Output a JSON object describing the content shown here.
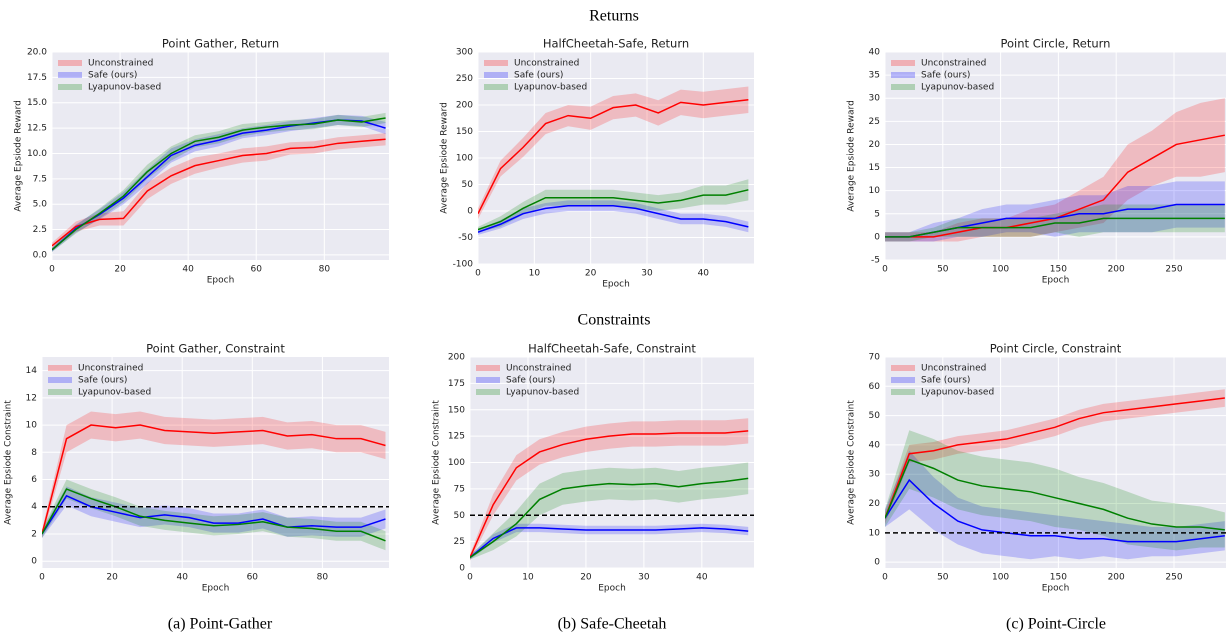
{
  "headings": [
    "Returns",
    "Constraints"
  ],
  "captions": [
    "(a) Point-Gather",
    "(b) Safe-Cheetah",
    "(c) Point-Circle"
  ],
  "chart_data": [
    {
      "type": "line",
      "title": "Point Gather, Return",
      "xlabel": "Epoch",
      "ylabel": "Average Epsiode Reward",
      "x": [
        0,
        7,
        14,
        21,
        28,
        35,
        42,
        49,
        56,
        63,
        70,
        77,
        84,
        91,
        98
      ],
      "xlim": [
        0,
        99
      ],
      "xticks": [
        0,
        20,
        40,
        60,
        80
      ],
      "ylim": [
        -0.5,
        20
      ],
      "yticks": [
        {
          "value": 0,
          "label": "0.0"
        },
        2.5,
        {
          "value": 5,
          "label": "5.0"
        },
        7.5,
        {
          "value": 10,
          "label": "10.0"
        },
        12.5,
        {
          "value": 15,
          "label": "15.0"
        },
        17.5,
        {
          "value": 20,
          "label": "20.0"
        }
      ],
      "grid": true,
      "legend": "upper left",
      "series": [
        {
          "name": "Unconstrained",
          "color": "#ff0000",
          "values": [
            0.9,
            2.8,
            3.5,
            3.6,
            6.3,
            7.8,
            8.8,
            9.3,
            9.8,
            10.0,
            10.5,
            10.6,
            11.0,
            11.2,
            11.4
          ],
          "spread": [
            0.3,
            0.5,
            0.6,
            0.7,
            0.8,
            0.8,
            0.8,
            0.7,
            0.7,
            0.7,
            0.6,
            0.6,
            0.6,
            0.6,
            0.6
          ]
        },
        {
          "name": "Safe (ours)",
          "color": "#0000ff",
          "values": [
            0.5,
            2.6,
            4.0,
            5.6,
            7.7,
            9.8,
            10.8,
            11.3,
            12.0,
            12.3,
            12.7,
            13.0,
            13.3,
            13.2,
            12.5
          ],
          "spread": [
            0.2,
            0.4,
            0.5,
            0.6,
            0.7,
            0.7,
            0.6,
            0.6,
            0.5,
            0.5,
            0.5,
            0.5,
            0.5,
            0.5,
            0.6
          ]
        },
        {
          "name": "Lyapunov-based",
          "color": "#008000",
          "values": [
            0.5,
            2.5,
            4.1,
            5.8,
            8.2,
            10.0,
            11.2,
            11.6,
            12.3,
            12.6,
            12.8,
            12.9,
            13.3,
            13.1,
            13.5
          ],
          "spread": [
            0.2,
            0.4,
            0.5,
            0.6,
            0.7,
            0.7,
            0.6,
            0.6,
            0.6,
            0.5,
            0.5,
            0.5,
            0.5,
            0.5,
            0.5
          ]
        }
      ]
    },
    {
      "type": "line",
      "title": "HalfCheetah-Safe, Return",
      "xlabel": "Epoch",
      "ylabel": "Average Epsiode Reward",
      "x": [
        0,
        4,
        8,
        12,
        16,
        20,
        24,
        28,
        32,
        36,
        40,
        44,
        48
      ],
      "xlim": [
        0,
        49
      ],
      "xticks": [
        0,
        10,
        20,
        30,
        40
      ],
      "ylim": [
        -100,
        300
      ],
      "yticks": [
        -100,
        -50,
        0,
        50,
        100,
        150,
        200,
        250,
        300
      ],
      "grid": true,
      "legend": "upper left",
      "series": [
        {
          "name": "Unconstrained",
          "color": "#ff0000",
          "values": [
            -5,
            80,
            120,
            165,
            180,
            175,
            195,
            200,
            185,
            205,
            200,
            205,
            210
          ],
          "spread": [
            10,
            15,
            18,
            20,
            20,
            22,
            22,
            22,
            24,
            24,
            25,
            25,
            25
          ]
        },
        {
          "name": "Safe (ours)",
          "color": "#0000ff",
          "values": [
            -40,
            -25,
            -5,
            5,
            10,
            10,
            10,
            5,
            -5,
            -15,
            -15,
            -20,
            -30
          ],
          "spread": [
            5,
            8,
            10,
            10,
            10,
            10,
            10,
            10,
            10,
            10,
            10,
            10,
            10
          ]
        },
        {
          "name": "Lyapunov-based",
          "color": "#008000",
          "values": [
            -35,
            -20,
            5,
            25,
            25,
            25,
            25,
            20,
            15,
            20,
            30,
            30,
            40
          ],
          "spread": [
            5,
            10,
            12,
            15,
            15,
            15,
            15,
            15,
            15,
            15,
            18,
            18,
            20
          ]
        }
      ]
    },
    {
      "type": "line",
      "title": "Point Circle, Return",
      "xlabel": "Epoch",
      "ylabel": "Average Epsiode Reward",
      "x": [
        0,
        21,
        42,
        63,
        84,
        105,
        126,
        147,
        168,
        189,
        210,
        231,
        252,
        273,
        294
      ],
      "xlim": [
        0,
        295
      ],
      "xticks": [
        0,
        50,
        100,
        150,
        200,
        250
      ],
      "ylim": [
        -5,
        40
      ],
      "yticks": [
        -5,
        0,
        5,
        10,
        15,
        20,
        25,
        30,
        35,
        40
      ],
      "grid": true,
      "legend": "upper left",
      "series": [
        {
          "name": "Unconstrained",
          "color": "#ff0000",
          "values": [
            0,
            0,
            0,
            1,
            2,
            2,
            3,
            4,
            6,
            8,
            14,
            17,
            20,
            21,
            22
          ],
          "spread": [
            1,
            1,
            1,
            2,
            2,
            2,
            3,
            3,
            4,
            5,
            6,
            6,
            7,
            8,
            8
          ]
        },
        {
          "name": "Safe (ours)",
          "color": "#0000ff",
          "values": [
            0,
            0,
            1,
            2,
            3,
            4,
            4,
            4,
            5,
            5,
            6,
            6,
            7,
            7,
            7
          ],
          "spread": [
            1,
            1,
            2,
            2,
            3,
            3,
            3,
            4,
            4,
            4,
            5,
            5,
            5,
            5,
            5
          ]
        },
        {
          "name": "Lyapunov-based",
          "color": "#008000",
          "values": [
            0,
            0,
            1,
            2,
            2,
            2,
            2,
            3,
            3,
            4,
            4,
            4,
            4,
            4,
            4
          ],
          "spread": [
            1,
            1,
            1,
            2,
            2,
            2,
            2,
            2,
            3,
            3,
            3,
            3,
            3,
            3,
            3
          ]
        }
      ]
    },
    {
      "type": "line",
      "title": "Point Gather, Constraint",
      "xlabel": "Epoch",
      "ylabel": "Average Epsiode Constraint",
      "x": [
        0,
        7,
        14,
        21,
        28,
        35,
        42,
        49,
        56,
        63,
        70,
        77,
        84,
        91,
        98
      ],
      "xlim": [
        0,
        99
      ],
      "xticks": [
        0,
        20,
        40,
        60,
        80
      ],
      "ylim": [
        -0.5,
        15
      ],
      "yticks": [
        0,
        2,
        4,
        6,
        8,
        10,
        12,
        14
      ],
      "grid": true,
      "legend": "upper left",
      "threshold": 4,
      "series": [
        {
          "name": "Unconstrained",
          "color": "#ff0000",
          "values": [
            2,
            9,
            10,
            9.8,
            10,
            9.6,
            9.5,
            9.4,
            9.5,
            9.6,
            9.2,
            9.3,
            9.0,
            9.0,
            8.5
          ],
          "spread": [
            0.3,
            1,
            1,
            1,
            1,
            1,
            1,
            1,
            1,
            1,
            1,
            1,
            1,
            1,
            1
          ]
        },
        {
          "name": "Safe (ours)",
          "color": "#0000ff",
          "values": [
            2,
            4.8,
            4.0,
            3.6,
            3.2,
            3.4,
            3.2,
            2.8,
            2.8,
            3.1,
            2.5,
            2.6,
            2.5,
            2.5,
            3.1
          ],
          "spread": [
            0.3,
            0.7,
            0.7,
            0.7,
            0.7,
            0.7,
            0.7,
            0.7,
            0.7,
            0.7,
            0.7,
            0.7,
            0.7,
            0.7,
            0.7
          ]
        },
        {
          "name": "Lyapunov-based",
          "color": "#008000",
          "values": [
            2,
            5.3,
            4.6,
            4.0,
            3.3,
            3.0,
            2.8,
            2.6,
            2.7,
            2.9,
            2.5,
            2.4,
            2.2,
            2.2,
            1.5
          ],
          "spread": [
            0.3,
            0.7,
            0.7,
            0.7,
            0.7,
            0.7,
            0.7,
            0.7,
            0.7,
            0.7,
            0.7,
            0.7,
            0.7,
            0.7,
            0.7
          ]
        }
      ]
    },
    {
      "type": "line",
      "title": "HalfCheetah-Safe, Constraint",
      "xlabel": "Epoch",
      "ylabel": "Average Epsiode Constraint",
      "x": [
        0,
        4,
        8,
        12,
        16,
        20,
        24,
        28,
        32,
        36,
        40,
        44,
        48
      ],
      "xlim": [
        0,
        49
      ],
      "xticks": [
        0,
        10,
        20,
        30,
        40
      ],
      "ylim": [
        0,
        200
      ],
      "yticks": [
        0,
        25,
        50,
        75,
        100,
        125,
        150,
        175,
        200
      ],
      "grid": true,
      "legend": "upper left",
      "threshold": 50,
      "series": [
        {
          "name": "Unconstrained",
          "color": "#ff0000",
          "values": [
            10,
            60,
            95,
            110,
            117,
            122,
            125,
            127,
            127,
            128,
            128,
            128,
            130
          ],
          "spread": [
            3,
            10,
            12,
            12,
            12,
            12,
            12,
            12,
            12,
            12,
            12,
            12,
            12
          ]
        },
        {
          "name": "Safe (ours)",
          "color": "#0000ff",
          "values": [
            10,
            28,
            38,
            38,
            37,
            36,
            36,
            36,
            36,
            37,
            38,
            37,
            35
          ],
          "spread": [
            2,
            4,
            4,
            4,
            4,
            4,
            4,
            4,
            4,
            4,
            4,
            4,
            4
          ]
        },
        {
          "name": "Lyapunov-based",
          "color": "#008000",
          "values": [
            10,
            25,
            42,
            65,
            75,
            78,
            80,
            79,
            80,
            77,
            80,
            82,
            85
          ],
          "spread": [
            2,
            8,
            12,
            15,
            15,
            15,
            15,
            15,
            15,
            15,
            15,
            15,
            15
          ]
        }
      ]
    },
    {
      "type": "line",
      "title": "Point Circle, Constraint",
      "xlabel": "Epoch",
      "ylabel": "Average Epsiode Constraint",
      "x": [
        0,
        21,
        42,
        63,
        84,
        105,
        126,
        147,
        168,
        189,
        210,
        231,
        252,
        273,
        294
      ],
      "xlim": [
        0,
        295
      ],
      "xticks": [
        0,
        50,
        100,
        150,
        200,
        250
      ],
      "ylim": [
        -2,
        70
      ],
      "yticks": [
        0,
        10,
        20,
        30,
        40,
        50,
        60,
        70
      ],
      "grid": true,
      "legend": "upper left",
      "threshold": 10,
      "series": [
        {
          "name": "Unconstrained",
          "color": "#ff0000",
          "values": [
            15,
            37,
            38,
            40,
            41,
            42,
            44,
            46,
            49,
            51,
            52,
            53,
            54,
            55,
            56
          ],
          "spread": [
            2,
            3,
            3,
            3,
            3,
            3,
            3,
            3,
            3,
            3,
            3,
            3,
            3,
            3,
            3
          ]
        },
        {
          "name": "Safe (ours)",
          "color": "#0000ff",
          "values": [
            15,
            28,
            20,
            14,
            11,
            10,
            9,
            9,
            8,
            8,
            7,
            7,
            7,
            8,
            9
          ],
          "spread": [
            3,
            10,
            9,
            8,
            8,
            8,
            8,
            7,
            7,
            6,
            6,
            5,
            5,
            5,
            5
          ]
        },
        {
          "name": "Lyapunov-based",
          "color": "#008000",
          "values": [
            15,
            35,
            32,
            28,
            26,
            25,
            24,
            22,
            20,
            18,
            15,
            13,
            12,
            12,
            11
          ],
          "spread": [
            3,
            10,
            10,
            10,
            10,
            10,
            10,
            10,
            9,
            9,
            9,
            8,
            8,
            7,
            6
          ]
        }
      ]
    }
  ]
}
